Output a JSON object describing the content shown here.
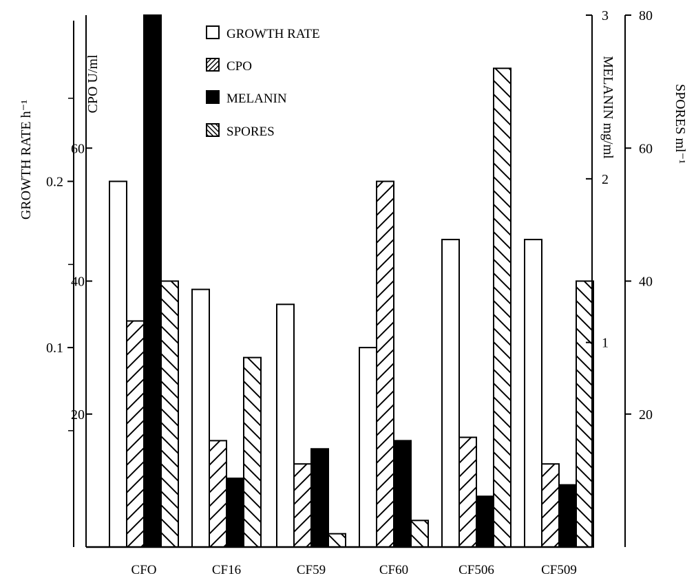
{
  "chart_data": {
    "type": "bar",
    "categories": [
      "CFO",
      "CF16",
      "CF59",
      "CF60",
      "CF506",
      "CF509"
    ],
    "series": [
      {
        "name": "GROWTH RATE",
        "axis": "growth",
        "pattern": "empty",
        "values": [
          0.2,
          0.135,
          0.126,
          0.1,
          0.165,
          0.165
        ]
      },
      {
        "name": "CPO",
        "axis": "cpo",
        "pattern": "hatch-forward",
        "values": [
          34,
          16,
          12.5,
          55,
          16.5,
          12.5
        ]
      },
      {
        "name": "MELANIN",
        "axis": "melanin",
        "pattern": "solid",
        "values": [
          3.2,
          0.17,
          0.35,
          0.4,
          0.06,
          0.13
        ]
      },
      {
        "name": "SPORES",
        "axis": "spores",
        "pattern": "hatch-back",
        "values": [
          40,
          28.5,
          2,
          4,
          72,
          40
        ]
      }
    ],
    "axes": {
      "growth": {
        "label": "GROWTH RATE h⁻¹",
        "range": [
          -0.02,
          0.3
        ],
        "ticks": [
          {
            "v": 0.1,
            "t": "0.1"
          },
          {
            "v": 0.2,
            "t": "0.2"
          }
        ]
      },
      "cpo": {
        "label": "CPO U/ml",
        "range": [
          0,
          80
        ],
        "ticks": [
          {
            "v": 20,
            "t": "20"
          },
          {
            "v": 40,
            "t": "40"
          },
          {
            "v": 60,
            "t": "60"
          }
        ]
      },
      "melanin": {
        "label": "MELANIN mg/ml",
        "range": [
          -0.25,
          3
        ],
        "ticks": [
          {
            "v": 1,
            "t": "1"
          },
          {
            "v": 2,
            "t": "2"
          },
          {
            "v": 3,
            "t": "3"
          }
        ]
      },
      "spores": {
        "label": "SPORES ml⁻¹",
        "range": [
          0,
          80
        ],
        "ticks": [
          {
            "v": 20,
            "t": "20"
          },
          {
            "v": 40,
            "t": "40"
          },
          {
            "v": 60,
            "t": "60"
          },
          {
            "v": 80,
            "t": "80"
          }
        ]
      }
    },
    "legend": {
      "position": "top-center",
      "items": [
        "GROWTH RATE",
        "CPO",
        "MELANIN",
        "SPORES"
      ]
    },
    "grid": false
  }
}
